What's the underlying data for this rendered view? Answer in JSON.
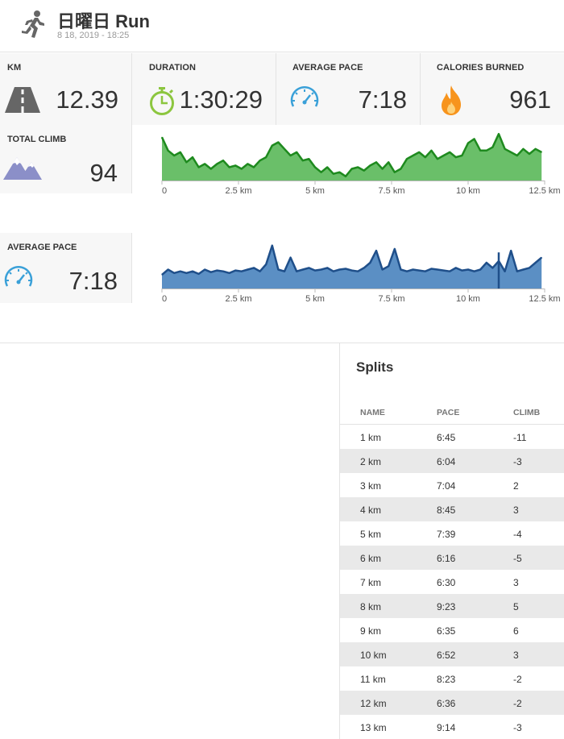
{
  "header": {
    "title": "日曜日 Run",
    "subtitle": "8 18, 2019  -  18:25"
  },
  "stats": [
    {
      "label": "KM",
      "value": "12.39",
      "icon": "road-icon"
    },
    {
      "label": "DURATION",
      "value": "1:30:29",
      "icon": "stopwatch-icon"
    },
    {
      "label": "AVERAGE PACE",
      "value": "7:18",
      "icon": "speedometer-icon"
    },
    {
      "label": "CALORIES BURNED",
      "value": "961",
      "icon": "flame-icon"
    }
  ],
  "climb": {
    "label": "TOTAL CLIMB",
    "value": "94",
    "icon": "mountain-icon"
  },
  "pace": {
    "label": "AVERAGE PACE",
    "value": "7:18",
    "icon": "speedometer-icon"
  },
  "colors": {
    "climb_fill": "#6abf69",
    "climb_line": "#1e8a1e",
    "pace_fill": "#5b8fc4",
    "pace_line": "#1f4f8a",
    "accent_blue": "#3aa0d8",
    "accent_green": "#8cc63f",
    "accent_orange": "#f7941d"
  },
  "chart_data": [
    {
      "type": "area",
      "name": "",
      "x_ticks": [
        "0",
        "2.5 km",
        "5 km",
        "7.5 km",
        "10 km",
        "12.5 km"
      ],
      "xlim": [
        0,
        12.5
      ],
      "x": [
        0,
        0.2,
        0.4,
        0.6,
        0.8,
        1.0,
        1.2,
        1.4,
        1.6,
        1.8,
        2.0,
        2.2,
        2.4,
        2.6,
        2.8,
        3.0,
        3.2,
        3.4,
        3.6,
        3.8,
        4.0,
        4.2,
        4.4,
        4.6,
        4.8,
        5.0,
        5.2,
        5.4,
        5.6,
        5.8,
        6.0,
        6.2,
        6.4,
        6.6,
        6.8,
        7.0,
        7.2,
        7.4,
        7.6,
        7.8,
        8.0,
        8.2,
        8.4,
        8.6,
        8.8,
        9.0,
        9.2,
        9.4,
        9.6,
        9.8,
        10.0,
        10.2,
        10.4,
        10.6,
        10.8,
        11.0,
        11.2,
        11.4,
        11.6,
        11.8,
        12.0,
        12.2,
        12.4
      ],
      "values": [
        52,
        36,
        30,
        34,
        22,
        28,
        16,
        20,
        14,
        20,
        24,
        16,
        18,
        14,
        20,
        16,
        24,
        28,
        42,
        46,
        38,
        30,
        34,
        24,
        26,
        16,
        10,
        16,
        8,
        10,
        5,
        14,
        16,
        12,
        18,
        22,
        14,
        22,
        10,
        14,
        26,
        30,
        34,
        28,
        36,
        26,
        30,
        34,
        28,
        30,
        45,
        50,
        36,
        36,
        40,
        56,
        38,
        34,
        30,
        38,
        32,
        38,
        34
      ],
      "ylim": [
        0,
        62
      ]
    },
    {
      "type": "area",
      "name": "",
      "x_ticks": [
        "0",
        "2.5 km",
        "5 km",
        "7.5 km",
        "10 km",
        "12.5 km"
      ],
      "xlim": [
        0,
        12.5
      ],
      "x": [
        0,
        0.2,
        0.4,
        0.6,
        0.8,
        1.0,
        1.2,
        1.4,
        1.6,
        1.8,
        2.0,
        2.2,
        2.4,
        2.6,
        2.8,
        3.0,
        3.2,
        3.4,
        3.6,
        3.8,
        4.0,
        4.2,
        4.4,
        4.6,
        4.8,
        5.0,
        5.2,
        5.4,
        5.6,
        5.8,
        6.0,
        6.2,
        6.4,
        6.6,
        6.8,
        7.0,
        7.2,
        7.4,
        7.6,
        7.8,
        8.0,
        8.2,
        8.4,
        8.6,
        8.8,
        9.0,
        9.2,
        9.4,
        9.6,
        9.8,
        10.0,
        10.2,
        10.4,
        10.6,
        10.8,
        11.0,
        11.2,
        11.4,
        11.6,
        11.8,
        12.0,
        12.2,
        12.4
      ],
      "values": [
        16,
        22,
        18,
        20,
        18,
        20,
        17,
        22,
        19,
        21,
        20,
        18,
        21,
        20,
        22,
        24,
        20,
        28,
        50,
        22,
        20,
        36,
        20,
        22,
        24,
        21,
        22,
        24,
        20,
        22,
        23,
        21,
        20,
        24,
        30,
        44,
        22,
        26,
        46,
        22,
        20,
        22,
        21,
        20,
        23,
        22,
        21,
        20,
        24,
        21,
        22,
        20,
        22,
        30,
        24,
        32,
        20,
        44,
        20,
        22,
        24,
        30,
        36
      ],
      "ylim": [
        0,
        60
      ]
    }
  ],
  "splits": {
    "title": "Splits",
    "columns": [
      "NAME",
      "PACE",
      "CLIMB"
    ],
    "rows": [
      [
        "1 km",
        "6:45",
        "-11"
      ],
      [
        "2 km",
        "6:04",
        "-3"
      ],
      [
        "3 km",
        "7:04",
        "2"
      ],
      [
        "4 km",
        "8:45",
        "3"
      ],
      [
        "5 km",
        "7:39",
        "-4"
      ],
      [
        "6 km",
        "6:16",
        "-5"
      ],
      [
        "7 km",
        "6:30",
        "3"
      ],
      [
        "8 km",
        "9:23",
        "5"
      ],
      [
        "9 km",
        "6:35",
        "6"
      ],
      [
        "10 km",
        "6:52",
        "3"
      ],
      [
        "11 km",
        "8:23",
        "-2"
      ],
      [
        "12 km",
        "6:36",
        "-2"
      ],
      [
        "13 km",
        "9:14",
        "-3"
      ]
    ]
  }
}
